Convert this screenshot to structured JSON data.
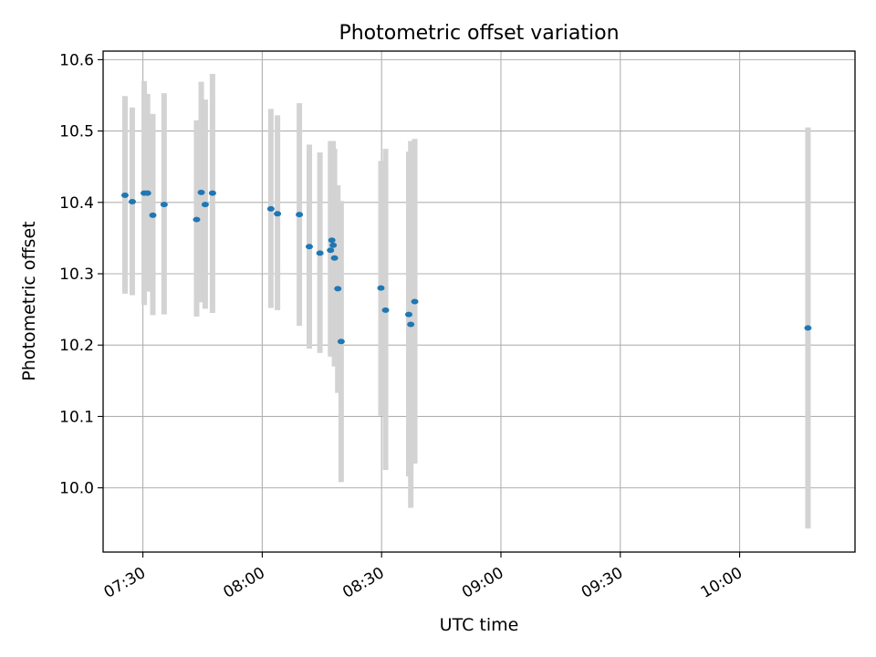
{
  "chart_data": {
    "type": "scatter",
    "title": "Photometric offset variation",
    "xlabel": "UTC time",
    "ylabel": "Photometric offset",
    "x_tick_labels": [
      "07:30",
      "08:00",
      "08:30",
      "09:00",
      "09:30",
      "10:00"
    ],
    "x_ticks": [
      "07:30",
      "08:00",
      "08:30",
      "09:00",
      "09:30",
      "10:00"
    ],
    "y_ticks": [
      10.0,
      10.1,
      10.2,
      10.3,
      10.4,
      10.5,
      10.6
    ],
    "y_tick_labels": [
      "10.0",
      "10.1",
      "10.2",
      "10.3",
      "10.4",
      "10.5",
      "10.6"
    ],
    "xlim": [
      "07:20",
      "10:29"
    ],
    "ylim": [
      9.91,
      10.612
    ],
    "grid": true,
    "colors": {
      "points": "#1f77b4",
      "errorbars": "#d3d3d3",
      "grid": "#b0b0b0"
    },
    "points": [
      {
        "x": "07:25:30",
        "y": 10.41,
        "ylow": 10.272,
        "yhigh": 10.549
      },
      {
        "x": "07:27:20",
        "y": 10.401,
        "ylow": 10.27,
        "yhigh": 10.533
      },
      {
        "x": "07:30:20",
        "y": 10.413,
        "ylow": 10.256,
        "yhigh": 10.57
      },
      {
        "x": "07:31:10",
        "y": 10.413,
        "ylow": 10.275,
        "yhigh": 10.552
      },
      {
        "x": "07:32:30",
        "y": 10.382,
        "ylow": 10.242,
        "yhigh": 10.524
      },
      {
        "x": "07:35:20",
        "y": 10.397,
        "ylow": 10.243,
        "yhigh": 10.553
      },
      {
        "x": "07:43:30",
        "y": 10.376,
        "ylow": 10.24,
        "yhigh": 10.515
      },
      {
        "x": "07:44:40",
        "y": 10.414,
        "ylow": 10.26,
        "yhigh": 10.569
      },
      {
        "x": "07:45:40",
        "y": 10.397,
        "ylow": 10.251,
        "yhigh": 10.544
      },
      {
        "x": "07:47:30",
        "y": 10.413,
        "ylow": 10.245,
        "yhigh": 10.58
      },
      {
        "x": "08:02:10",
        "y": 10.391,
        "ylow": 10.252,
        "yhigh": 10.531
      },
      {
        "x": "08:03:50",
        "y": 10.384,
        "ylow": 10.249,
        "yhigh": 10.522
      },
      {
        "x": "08:09:20",
        "y": 10.383,
        "ylow": 10.227,
        "yhigh": 10.539
      },
      {
        "x": "08:11:50",
        "y": 10.338,
        "ylow": 10.195,
        "yhigh": 10.481
      },
      {
        "x": "08:14:30",
        "y": 10.329,
        "ylow": 10.189,
        "yhigh": 10.47
      },
      {
        "x": "08:17:10",
        "y": 10.333,
        "ylow": 10.184,
        "yhigh": 10.486
      },
      {
        "x": "08:17:30",
        "y": 10.347,
        "ylow": 10.184,
        "yhigh": 10.486
      },
      {
        "x": "08:17:50",
        "y": 10.34,
        "ylow": 10.184,
        "yhigh": 10.486
      },
      {
        "x": "08:18:10",
        "y": 10.322,
        "ylow": 10.17,
        "yhigh": 10.475
      },
      {
        "x": "08:19:00",
        "y": 10.279,
        "ylow": 10.133,
        "yhigh": 10.424
      },
      {
        "x": "08:19:50",
        "y": 10.205,
        "ylow": 10.008,
        "yhigh": 10.402
      },
      {
        "x": "08:29:50",
        "y": 10.28,
        "ylow": 10.101,
        "yhigh": 10.458
      },
      {
        "x": "08:31:00",
        "y": 10.249,
        "ylow": 10.025,
        "yhigh": 10.475
      },
      {
        "x": "08:36:50",
        "y": 10.243,
        "ylow": 10.016,
        "yhigh": 10.471
      },
      {
        "x": "08:37:20",
        "y": 10.229,
        "ylow": 9.972,
        "yhigh": 10.486
      },
      {
        "x": "08:38:20",
        "y": 10.261,
        "ylow": 10.034,
        "yhigh": 10.489
      },
      {
        "x": "10:17:10",
        "y": 10.224,
        "ylow": 9.943,
        "yhigh": 10.505
      }
    ]
  }
}
